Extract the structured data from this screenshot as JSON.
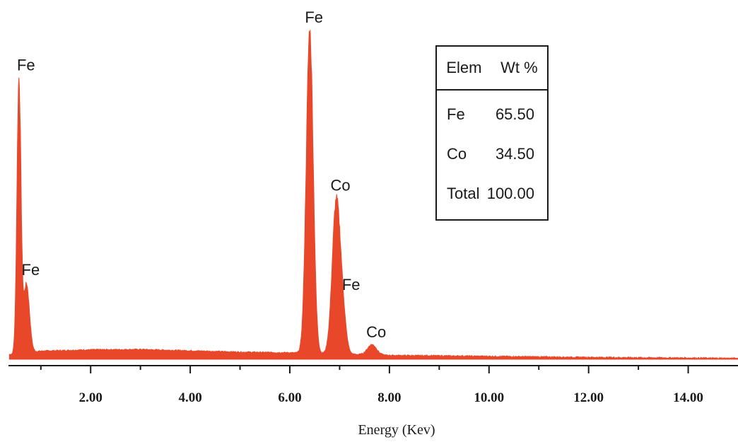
{
  "chart_data": {
    "type": "area",
    "xlabel": "Energy (Kev)",
    "ylabel": "",
    "xlim": [
      0.35,
      15.0
    ],
    "ylim": [
      0,
      100
    ],
    "x_ticks": [
      "2.00",
      "4.00",
      "6.00",
      "8.00",
      "10.00",
      "12.00",
      "14.00"
    ],
    "x_tick_values": [
      2,
      4,
      6,
      8,
      10,
      12,
      14
    ],
    "series_color": "#e8472a",
    "baseline": [
      {
        "x": 0.4,
        "y": 1.5
      },
      {
        "x": 1.0,
        "y": 2.5
      },
      {
        "x": 2.0,
        "y": 2.9
      },
      {
        "x": 3.0,
        "y": 3.0
      },
      {
        "x": 4.0,
        "y": 2.6
      },
      {
        "x": 5.0,
        "y": 2.2
      },
      {
        "x": 6.0,
        "y": 2.0
      },
      {
        "x": 8.0,
        "y": 1.2
      },
      {
        "x": 10.0,
        "y": 0.9
      },
      {
        "x": 12.0,
        "y": 0.6
      },
      {
        "x": 15.0,
        "y": 0.3
      }
    ],
    "peaks": [
      {
        "x": 0.56,
        "y": 85,
        "width": 0.04,
        "label": "Fe"
      },
      {
        "x": 0.71,
        "y": 23,
        "width": 0.06,
        "label": "Fe"
      },
      {
        "x": 6.4,
        "y": 100,
        "width": 0.07,
        "label": "Fe"
      },
      {
        "x": 6.93,
        "y": 47,
        "width": 0.08,
        "label": "Co"
      },
      {
        "x": 7.06,
        "y": 12,
        "width": 0.07,
        "label": "Fe"
      },
      {
        "x": 7.65,
        "y": 4.5,
        "width": 0.09,
        "label": "Co"
      }
    ],
    "annotations": [
      {
        "text": "Fe",
        "x": 0.56
      },
      {
        "text": "Fe",
        "x": 0.71
      },
      {
        "text": "Fe",
        "x": 6.4
      },
      {
        "text": "Co",
        "x": 6.93
      },
      {
        "text": "Fe",
        "x": 7.06
      },
      {
        "text": "Co",
        "x": 7.65
      }
    ]
  },
  "composition_table": {
    "header": {
      "elem": "Elem",
      "wt": "Wt %"
    },
    "rows": [
      {
        "elem": "Fe",
        "wt": "65.50"
      },
      {
        "elem": "Co",
        "wt": "34.50"
      },
      {
        "elem": "Total",
        "wt": "100.00"
      }
    ]
  }
}
